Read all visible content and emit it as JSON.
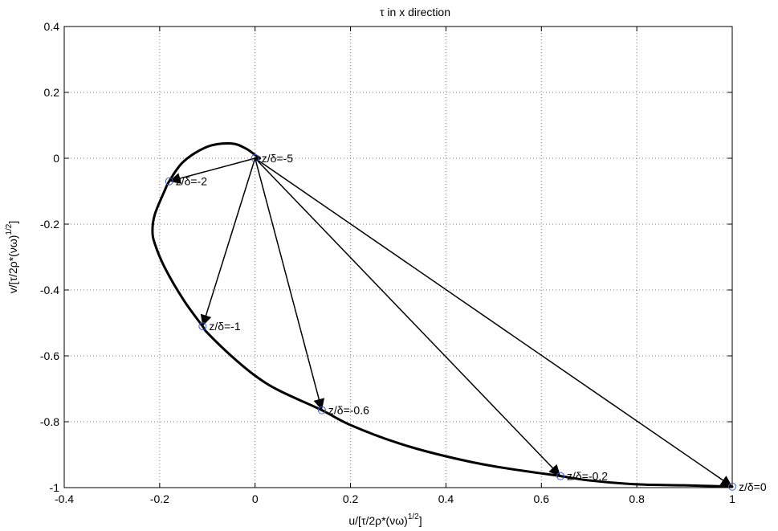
{
  "chart_data": {
    "type": "line",
    "title": "τ in x direction",
    "xlabel": "u/[τ/2ρ*(νω)",
    "xlabel_sup": "1/2",
    "xlabel_tail": "]",
    "ylabel": "v/[τ/2ρ*(νω)",
    "ylabel_sup": "1/2",
    "ylabel_tail": "]",
    "xlim": [
      -0.4,
      1.0
    ],
    "ylim": [
      -1.0,
      0.4
    ],
    "xticks": [
      -0.4,
      -0.2,
      0,
      0.2,
      0.4,
      0.6,
      0.8,
      1
    ],
    "xtick_labels": [
      "-0.4",
      "-0.2",
      "0",
      "0.2",
      "0.4",
      "0.6",
      "0.8",
      "1"
    ],
    "yticks": [
      -1,
      -0.8,
      -0.6,
      -0.4,
      -0.2,
      0,
      0.2,
      0.4
    ],
    "ytick_labels": [
      "-1",
      "-0.8",
      "-0.6",
      "-0.4",
      "-0.2",
      "0",
      "0.2",
      "0.4"
    ],
    "grid": true,
    "line_color": "#000000",
    "marker_color": "#3a5fcd",
    "spiral": {
      "x": [
        1.0,
        0.9,
        0.8,
        0.7,
        0.64,
        0.5,
        0.4,
        0.3,
        0.2,
        0.14,
        0.05,
        0.0,
        -0.05,
        -0.1,
        -0.11,
        -0.15,
        -0.19,
        -0.21,
        -0.215,
        -0.21,
        -0.19,
        -0.18,
        -0.15,
        -0.1,
        -0.05,
        -0.02,
        0.0,
        0.01,
        0.0
      ],
      "y": [
        -0.997,
        -0.993,
        -0.99,
        -0.978,
        -0.965,
        -0.935,
        -0.905,
        -0.865,
        -0.81,
        -0.765,
        -0.705,
        -0.66,
        -0.6,
        -0.53,
        -0.51,
        -0.43,
        -0.33,
        -0.26,
        -0.22,
        -0.17,
        -0.1,
        -0.07,
        -0.01,
        0.035,
        0.045,
        0.03,
        0.01,
        0.0,
        0.0
      ]
    },
    "origin": {
      "x": 0.0,
      "y": 0.0
    },
    "points": [
      {
        "x": 0.0,
        "y": 0.0,
        "label": "z/δ=-5"
      },
      {
        "x": -0.18,
        "y": -0.07,
        "label": "z/δ=-2"
      },
      {
        "x": -0.11,
        "y": -0.51,
        "label": "z/δ=-1"
      },
      {
        "x": 0.14,
        "y": -0.765,
        "label": "z/δ=-0.6"
      },
      {
        "x": 0.64,
        "y": -0.965,
        "label": "z/δ=-0.2"
      },
      {
        "x": 1.0,
        "y": -0.997,
        "label": "z/δ=0"
      }
    ]
  }
}
